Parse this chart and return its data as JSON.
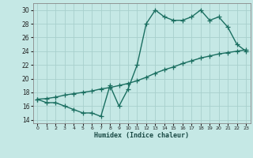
{
  "line1_x": [
    0,
    1,
    2,
    3,
    4,
    5,
    6,
    7,
    8,
    9,
    10,
    11,
    12,
    13,
    14,
    15,
    16,
    17,
    18,
    19,
    20,
    21,
    22,
    23
  ],
  "line1_y": [
    17,
    16.5,
    16.5,
    16,
    15.5,
    15,
    15,
    14.5,
    19,
    16,
    18.5,
    22,
    28,
    30,
    29,
    28.5,
    28.5,
    29,
    30,
    28.5,
    29,
    27.5,
    25,
    24
  ],
  "line2_x": [
    0,
    1,
    2,
    3,
    4,
    5,
    6,
    7,
    8,
    9,
    10,
    11,
    12,
    13,
    14,
    15,
    16,
    17,
    18,
    19,
    20,
    21,
    22,
    23
  ],
  "line2_y": [
    17.0,
    17.1,
    17.3,
    17.6,
    17.8,
    18.0,
    18.2,
    18.5,
    18.7,
    19.0,
    19.3,
    19.7,
    20.2,
    20.8,
    21.3,
    21.7,
    22.2,
    22.6,
    23.0,
    23.3,
    23.6,
    23.8,
    24.0,
    24.2
  ],
  "line_color": "#1a6e60",
  "bg_color": "#c5e8e5",
  "grid_color": "#a8d0cc",
  "xlabel": "Humidex (Indice chaleur)",
  "xlim": [
    -0.5,
    23.5
  ],
  "ylim": [
    13.5,
    31.0
  ],
  "yticks": [
    14,
    16,
    18,
    20,
    22,
    24,
    26,
    28,
    30
  ],
  "xticks": [
    0,
    1,
    2,
    3,
    4,
    5,
    6,
    7,
    8,
    9,
    10,
    11,
    12,
    13,
    14,
    15,
    16,
    17,
    18,
    19,
    20,
    21,
    22,
    23
  ],
  "marker": "+",
  "markersize": 4,
  "linewidth": 1.0
}
